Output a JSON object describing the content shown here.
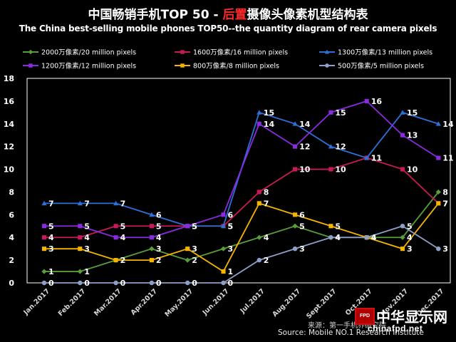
{
  "title_zh_a": "中国畅销手机TOP 50 - ",
  "title_zh_b": "后置",
  "title_zh_c": "摄像头像素机型结构表",
  "title_en": "The China best-selling mobile phones TOP50--the quantity diagram of rear camera pixels",
  "source": "Source: Mobile NO.1 Research Institute",
  "source_zh": "来源：第一手机界研究院",
  "watermark": {
    "logo": "FPD",
    "name_cn": "中华显示网",
    "site": "chinafpd.net"
  },
  "colors": {
    "background": "#000000",
    "title_highlight": "#ff2a2a"
  },
  "chart_data": {
    "type": "line",
    "title": "The China best-selling mobile phones TOP50--the quantity diagram of rear camera pixels",
    "xlabel": "",
    "ylabel": "",
    "ylim": [
      0,
      18
    ],
    "yticks": [
      0,
      2,
      4,
      6,
      8,
      10,
      12,
      14,
      16,
      18
    ],
    "grid": false,
    "legend_position": "top",
    "categories": [
      "Jan.2017",
      "Feb.2017",
      "Mar.2017",
      "Apr.2017",
      "May.2017",
      "Jun.2017",
      "Jul.2017",
      "Aug.2017",
      "Sept.2017",
      "Oct.2017",
      "Nov.2017",
      "Dec.2017"
    ],
    "series": [
      {
        "name": "2000万像素/20 million pixels",
        "color": "#5a9e3a",
        "marker": "diamond",
        "values": [
          1,
          1,
          2,
          3,
          2,
          3,
          4,
          5,
          4,
          4,
          4,
          8
        ]
      },
      {
        "name": "1600万像素/16 million pixels",
        "color": "#c8195a",
        "marker": "square",
        "values": [
          4,
          4,
          5,
          5,
          5,
          5,
          8,
          10,
          10,
          11,
          10,
          7
        ]
      },
      {
        "name": "1300万像素/13 million pixels",
        "color": "#2e6fd8",
        "marker": "triangle",
        "values": [
          7,
          7,
          7,
          6,
          5,
          5,
          15,
          14,
          12,
          11,
          15,
          14
        ]
      },
      {
        "name": "1200万像素/12 million pixels",
        "color": "#8a2be2",
        "marker": "square",
        "values": [
          5,
          5,
          4,
          4,
          5,
          6,
          14,
          12,
          15,
          16,
          13,
          11
        ]
      },
      {
        "name": "800万像素/8 million pixels",
        "color": "#f5b400",
        "marker": "square",
        "values": [
          3,
          3,
          2,
          2,
          3,
          1,
          7,
          6,
          5,
          4,
          3,
          7
        ]
      },
      {
        "name": "500万像素/5 million pixels",
        "color": "#8ea0c8",
        "marker": "circle",
        "values": [
          0,
          0,
          0,
          0,
          0,
          0,
          2,
          3,
          4,
          4,
          5,
          3
        ]
      }
    ]
  }
}
